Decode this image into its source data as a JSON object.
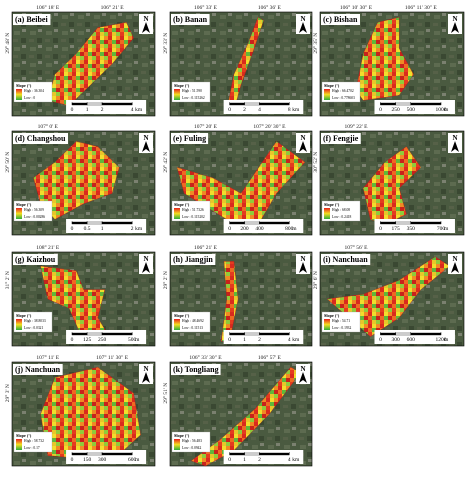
{
  "panels": [
    {
      "label": "(a) Beibei",
      "coords_top": [
        "106° 18' E",
        "106° 21' E"
      ],
      "coords_left": [
        "29° 48' N"
      ],
      "legend": {
        "title": "Slope (°)",
        "high": "High : 36.304",
        "low": "Low : 0"
      },
      "scale": {
        "ticks": [
          0,
          1,
          2,
          4
        ],
        "unit": "km"
      }
    },
    {
      "label": "(b) Banan",
      "coords_top": [
        "106° 33' E",
        "106° 36' E"
      ],
      "coords_left": [
        "29° 33' N"
      ],
      "legend": {
        "title": "Slope (°)",
        "high": "High : 51.590",
        "low": "Low : 0.115262"
      },
      "scale": {
        "ticks": [
          0,
          2,
          4,
          8
        ],
        "unit": "km"
      }
    },
    {
      "label": "(c) Bishan",
      "coords_top": [
        "106° 10' 30\" E",
        "106° 11' 30\" E"
      ],
      "coords_left": [
        "29° 35' N"
      ],
      "legend": {
        "title": "Slope (°)",
        "high": "High : 66.4702",
        "low": "Low : 0.778603"
      },
      "scale": {
        "ticks": [
          0,
          250,
          500,
          1000
        ],
        "unit": "m"
      }
    },
    {
      "label": "(d) Changshou",
      "coords_top": [
        "107° 0' E"
      ],
      "coords_left": [
        "29° 50' N"
      ],
      "legend": {
        "title": "Slope (°)",
        "high": "High : 56.309",
        "low": "Low : 0.00286"
      },
      "scale": {
        "ticks": [
          0,
          0.5,
          1,
          2
        ],
        "unit": "km"
      }
    },
    {
      "label": "(e) Fuling",
      "coords_top": [
        "107° 20' E",
        "107° 20' 30\" E"
      ],
      "coords_left": [
        "29° 42' N"
      ],
      "legend": {
        "title": "Slope (°)",
        "high": "High : 51.7326",
        "low": "Low : 0.115202"
      },
      "scale": {
        "ticks": [
          0,
          200,
          400,
          800
        ],
        "unit": "m"
      }
    },
    {
      "label": "(f) Fengjie",
      "coords_top": [
        "109° 22' E"
      ],
      "coords_left": [
        "30° 52' N"
      ],
      "legend": {
        "title": "Slope (°)",
        "high": "High : 68.08",
        "low": "Low : 0.2418"
      },
      "scale": {
        "ticks": [
          0,
          175,
          350,
          700
        ],
        "unit": "m"
      }
    },
    {
      "label": "(g) Kaizhou",
      "coords_top": [
        "108° 21' E"
      ],
      "coords_left": [
        "31° 2' N"
      ],
      "legend": {
        "title": "Slope (°)",
        "high": "High : 38.8033",
        "low": "Low : 0.0321"
      },
      "scale": {
        "ticks": [
          0,
          125,
          250,
          500
        ],
        "unit": "m"
      }
    },
    {
      "label": "(h) Jiangjin",
      "coords_top": [
        "106° 21' E"
      ],
      "coords_left": [
        "29° 2' N"
      ],
      "legend": {
        "title": "Slope (°)",
        "high": "High : 48.4692",
        "low": "Low : 0.11513"
      },
      "scale": {
        "ticks": [
          0,
          1,
          2,
          4
        ],
        "unit": "km"
      }
    },
    {
      "label": "(i) Nanchuan",
      "coords_top": [
        "107° 56' E"
      ],
      "coords_left": [
        "29° 6' N"
      ],
      "legend": {
        "title": "Slope (°)",
        "high": "High : 54.71",
        "low": "Low : 0.1932"
      },
      "scale": {
        "ticks": [
          0,
          300,
          600,
          1200
        ],
        "unit": "m"
      }
    },
    {
      "label": "(j) Nanchuan",
      "coords_top": [
        "107° 11' E",
        "107° 11' 30\" E"
      ],
      "coords_left": [
        "29° 3' N"
      ],
      "legend": {
        "title": "Slope (°)",
        "high": "High : 58.732",
        "low": "Low : 0.17"
      },
      "scale": {
        "ticks": [
          0,
          150,
          300,
          600
        ],
        "unit": "m"
      }
    },
    {
      "label": "(k) Tongliang",
      "coords_top": [
        "106° 33' 30\" E",
        "106° 57' E"
      ],
      "coords_left": [
        "29° 51' N"
      ],
      "legend": {
        "title": "Slope (°)",
        "high": "High : 56.483",
        "low": "Low : 0.0942"
      },
      "scale": {
        "ticks": [
          0,
          1,
          2,
          4
        ],
        "unit": "km"
      }
    }
  ]
}
